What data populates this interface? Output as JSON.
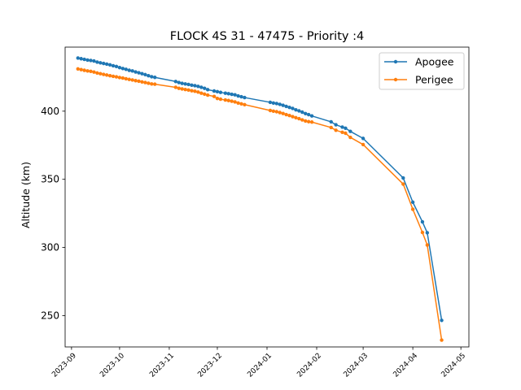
{
  "chart_data": {
    "type": "line",
    "title": "FLOCK 4S 31 - 47475 - Priority :4",
    "xlabel": "",
    "ylabel": "Altitude (km)",
    "xlim": [
      "2023-08-28",
      "2024-05-06"
    ],
    "ylim": [
      227,
      447
    ],
    "grid": false,
    "legend_position": "top-right",
    "x_ticks": [
      "2023-09-01",
      "2023-10-01",
      "2023-11-01",
      "2023-12-01",
      "2024-01-01",
      "2024-02-01",
      "2024-03-01",
      "2024-04-01",
      "2024-05-01"
    ],
    "x_tick_labels": [
      "2023-09",
      "2023-10",
      "2023-11",
      "2023-12",
      "2024-01",
      "2024-02",
      "2024-03",
      "2024-04",
      "2024-05"
    ],
    "y_ticks": [
      250,
      300,
      350,
      400
    ],
    "y_tick_labels": [
      "250",
      "300",
      "350",
      "400"
    ],
    "series": [
      {
        "name": "Apogee",
        "color": "#1f77b4",
        "points": [
          [
            "2023-09-05",
            439.0
          ],
          [
            "2023-09-07",
            438.5
          ],
          [
            "2023-09-09",
            438.0
          ],
          [
            "2023-09-11",
            437.5
          ],
          [
            "2023-09-13",
            437.2
          ],
          [
            "2023-09-15",
            436.8
          ],
          [
            "2023-09-17",
            436.0
          ],
          [
            "2023-09-19",
            435.5
          ],
          [
            "2023-09-21",
            435.0
          ],
          [
            "2023-09-23",
            434.5
          ],
          [
            "2023-09-25",
            434.0
          ],
          [
            "2023-09-27",
            433.3
          ],
          [
            "2023-09-29",
            432.8
          ],
          [
            "2023-10-01",
            432.0
          ],
          [
            "2023-10-03",
            431.3
          ],
          [
            "2023-10-05",
            430.7
          ],
          [
            "2023-10-07",
            430.0
          ],
          [
            "2023-10-09",
            429.5
          ],
          [
            "2023-10-11",
            428.8
          ],
          [
            "2023-10-13",
            428.2
          ],
          [
            "2023-10-15",
            427.5
          ],
          [
            "2023-10-17",
            426.8
          ],
          [
            "2023-10-19",
            426.0
          ],
          [
            "2023-10-21",
            425.3
          ],
          [
            "2023-10-23",
            424.8
          ],
          [
            "2023-11-05",
            421.8
          ],
          [
            "2023-11-07",
            421.0
          ],
          [
            "2023-11-09",
            420.4
          ],
          [
            "2023-11-11",
            420.0
          ],
          [
            "2023-11-13",
            419.6
          ],
          [
            "2023-11-15",
            419.1
          ],
          [
            "2023-11-17",
            418.7
          ],
          [
            "2023-11-19",
            418.2
          ],
          [
            "2023-11-21",
            417.5
          ],
          [
            "2023-11-23",
            416.8
          ],
          [
            "2023-11-25",
            415.8
          ],
          [
            "2023-11-29",
            414.8
          ],
          [
            "2023-12-01",
            414.3
          ],
          [
            "2023-12-03",
            413.8
          ],
          [
            "2023-12-06",
            413.2
          ],
          [
            "2023-12-08",
            412.8
          ],
          [
            "2023-12-10",
            412.4
          ],
          [
            "2023-12-12",
            412.0
          ],
          [
            "2023-12-14",
            411.2
          ],
          [
            "2023-12-16",
            410.6
          ],
          [
            "2023-12-18",
            410.0
          ],
          [
            "2024-01-03",
            406.5
          ],
          [
            "2024-01-05",
            406.0
          ],
          [
            "2024-01-07",
            405.6
          ],
          [
            "2024-01-09",
            405.0
          ],
          [
            "2024-01-11",
            404.3
          ],
          [
            "2024-01-13",
            403.5
          ],
          [
            "2024-01-15",
            402.8
          ],
          [
            "2024-01-17",
            402.0
          ],
          [
            "2024-01-19",
            401.0
          ],
          [
            "2024-01-21",
            400.2
          ],
          [
            "2024-01-23",
            399.3
          ],
          [
            "2024-01-25",
            398.2
          ],
          [
            "2024-01-27",
            397.5
          ],
          [
            "2024-01-29",
            396.5
          ],
          [
            "2024-02-10",
            392.2
          ],
          [
            "2024-02-13",
            390.0
          ],
          [
            "2024-02-17",
            388.3
          ],
          [
            "2024-02-19",
            387.5
          ],
          [
            "2024-02-22",
            385.2
          ],
          [
            "2024-03-01",
            380.0
          ],
          [
            "2024-03-26",
            351.0
          ],
          [
            "2024-04-01",
            333.2
          ],
          [
            "2024-04-07",
            318.8
          ],
          [
            "2024-04-10",
            310.8
          ],
          [
            "2024-04-19",
            246.5
          ]
        ]
      },
      {
        "name": "Perigee",
        "color": "#ff7f0e",
        "points": [
          [
            "2023-09-05",
            431.0
          ],
          [
            "2023-09-07",
            430.5
          ],
          [
            "2023-09-09",
            430.0
          ],
          [
            "2023-09-11",
            429.5
          ],
          [
            "2023-09-13",
            429.2
          ],
          [
            "2023-09-15",
            428.7
          ],
          [
            "2023-09-17",
            428.0
          ],
          [
            "2023-09-19",
            427.5
          ],
          [
            "2023-09-21",
            427.0
          ],
          [
            "2023-09-23",
            426.5
          ],
          [
            "2023-09-25",
            426.0
          ],
          [
            "2023-09-27",
            425.6
          ],
          [
            "2023-09-29",
            425.2
          ],
          [
            "2023-10-01",
            424.7
          ],
          [
            "2023-10-03",
            424.3
          ],
          [
            "2023-10-05",
            423.8
          ],
          [
            "2023-10-07",
            423.3
          ],
          [
            "2023-10-09",
            422.9
          ],
          [
            "2023-10-11",
            422.4
          ],
          [
            "2023-10-13",
            422.0
          ],
          [
            "2023-10-15",
            421.5
          ],
          [
            "2023-10-17",
            421.0
          ],
          [
            "2023-10-19",
            420.5
          ],
          [
            "2023-10-21",
            420.0
          ],
          [
            "2023-10-23",
            419.8
          ],
          [
            "2023-11-05",
            417.5
          ],
          [
            "2023-11-07",
            416.8
          ],
          [
            "2023-11-09",
            416.3
          ],
          [
            "2023-11-11",
            415.9
          ],
          [
            "2023-11-13",
            415.5
          ],
          [
            "2023-11-15",
            415.0
          ],
          [
            "2023-11-17",
            414.6
          ],
          [
            "2023-11-19",
            414.0
          ],
          [
            "2023-11-21",
            413.2
          ],
          [
            "2023-11-23",
            412.5
          ],
          [
            "2023-11-25",
            411.8
          ],
          [
            "2023-11-29",
            410.8
          ],
          [
            "2023-12-01",
            409.3
          ],
          [
            "2023-12-03",
            408.8
          ],
          [
            "2023-12-06",
            408.2
          ],
          [
            "2023-12-08",
            407.8
          ],
          [
            "2023-12-10",
            407.3
          ],
          [
            "2023-12-12",
            406.8
          ],
          [
            "2023-12-14",
            406.0
          ],
          [
            "2023-12-16",
            405.4
          ],
          [
            "2023-12-18",
            404.8
          ],
          [
            "2024-01-03",
            400.5
          ],
          [
            "2024-01-05",
            400.0
          ],
          [
            "2024-01-07",
            399.6
          ],
          [
            "2024-01-09",
            399.0
          ],
          [
            "2024-01-11",
            398.3
          ],
          [
            "2024-01-13",
            397.5
          ],
          [
            "2024-01-15",
            396.8
          ],
          [
            "2024-01-17",
            396.0
          ],
          [
            "2024-01-19",
            395.2
          ],
          [
            "2024-01-21",
            394.5
          ],
          [
            "2024-01-23",
            393.6
          ],
          [
            "2024-01-25",
            392.8
          ],
          [
            "2024-01-27",
            392.3
          ],
          [
            "2024-01-29",
            392.0
          ],
          [
            "2024-02-10",
            388.0
          ],
          [
            "2024-02-13",
            386.0
          ],
          [
            "2024-02-17",
            384.5
          ],
          [
            "2024-02-19",
            383.8
          ],
          [
            "2024-02-22",
            380.8
          ],
          [
            "2024-03-01",
            375.5
          ],
          [
            "2024-03-26",
            346.5
          ],
          [
            "2024-04-01",
            328.0
          ],
          [
            "2024-04-07",
            311.0
          ],
          [
            "2024-04-10",
            301.8
          ],
          [
            "2024-04-19",
            232.0
          ]
        ]
      }
    ]
  }
}
